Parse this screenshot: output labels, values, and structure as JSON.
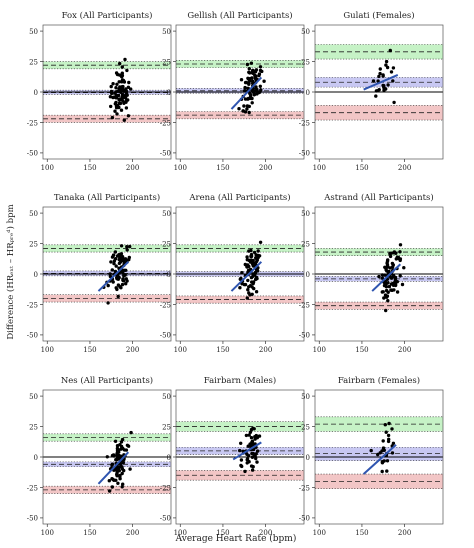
{
  "figure": {
    "xlabel": "Average Heart Rate (bpm)",
    "ylabel": "Difference (HRₑₓₜ – HRₚᵣₑᵈ) bpm"
  },
  "colors": {
    "upper_loa_band": "#c6f2c6",
    "bias_band": "#c8c8f2",
    "lower_loa_band": "#f2c6c6",
    "regression_line": "#2f55b0",
    "points": "#000000",
    "zero_line": "#000000"
  },
  "chart_data": [
    {
      "type": "scatter",
      "title": "Fox (All Participants)",
      "xlim": [
        95,
        245
      ],
      "ylim": [
        -55,
        55
      ],
      "xticks": [
        100,
        150,
        200
      ],
      "yticks": [
        -50,
        -25,
        0,
        25,
        50
      ],
      "x_range": [
        165,
        200
      ],
      "y_range": [
        -28,
        27
      ],
      "n": 85,
      "bias": -0.5,
      "bias_ci": [
        -2,
        1.5
      ],
      "upper_loa": 22,
      "upper_loa_ci": [
        19,
        25
      ],
      "lower_loa": -22,
      "lower_loa_ci": [
        -25,
        -19
      ],
      "regression": null
    },
    {
      "type": "scatter",
      "title": "Gellish (All Participants)",
      "xlim": [
        95,
        245
      ],
      "ylim": [
        -55,
        55
      ],
      "xticks": [
        100,
        150,
        200
      ],
      "yticks": [
        -50,
        -25,
        0,
        25,
        50
      ],
      "x_range": [
        160,
        200
      ],
      "y_range": [
        -25,
        26
      ],
      "n": 85,
      "bias": 1,
      "bias_ci": [
        -1,
        3
      ],
      "upper_loa": 23,
      "upper_loa_ci": [
        20,
        26
      ],
      "lower_loa": -19,
      "lower_loa_ci": [
        -22,
        -16
      ],
      "regression": {
        "x": [
          160,
          195
        ],
        "y": [
          -14,
          12
        ]
      }
    },
    {
      "type": "scatter",
      "title": "Gulati (Females)",
      "xlim": [
        95,
        245
      ],
      "ylim": [
        -55,
        55
      ],
      "xticks": [
        100,
        150,
        200
      ],
      "yticks": [
        -50,
        -25,
        0,
        25,
        50
      ],
      "x_range": [
        150,
        195
      ],
      "y_range": [
        -15,
        36
      ],
      "n": 25,
      "bias": 8,
      "bias_ci": [
        4,
        12
      ],
      "upper_loa": 33,
      "upper_loa_ci": [
        27,
        39
      ],
      "lower_loa": -17,
      "lower_loa_ci": [
        -23,
        -11
      ],
      "regression": {
        "x": [
          152,
          192
        ],
        "y": [
          2,
          14
        ]
      }
    },
    {
      "type": "scatter",
      "title": "Tanaka (All Participants)",
      "xlim": [
        95,
        245
      ],
      "ylim": [
        -55,
        55
      ],
      "xticks": [
        100,
        150,
        200
      ],
      "yticks": [
        -50,
        -25,
        0,
        25,
        50
      ],
      "x_range": [
        160,
        200
      ],
      "y_range": [
        -25,
        26
      ],
      "n": 85,
      "bias": 0.5,
      "bias_ci": [
        -1.5,
        2.5
      ],
      "upper_loa": 21,
      "upper_loa_ci": [
        18,
        24
      ],
      "lower_loa": -20,
      "lower_loa_ci": [
        -23,
        -17
      ],
      "regression": {
        "x": [
          160,
          195
        ],
        "y": [
          -14,
          10
        ]
      }
    },
    {
      "type": "scatter",
      "title": "Arena (All Participants)",
      "xlim": [
        95,
        245
      ],
      "ylim": [
        -55,
        55
      ],
      "xticks": [
        100,
        150,
        200
      ],
      "yticks": [
        -50,
        -25,
        0,
        25,
        50
      ],
      "x_range": [
        160,
        200
      ],
      "y_range": [
        -25,
        26
      ],
      "n": 85,
      "bias": 0,
      "bias_ci": [
        -2,
        2
      ],
      "upper_loa": 21,
      "upper_loa_ci": [
        18,
        24
      ],
      "lower_loa": -21,
      "lower_loa_ci": [
        -24,
        -18
      ],
      "regression": {
        "x": [
          160,
          195
        ],
        "y": [
          -14,
          10
        ]
      }
    },
    {
      "type": "scatter",
      "title": "Astrand (All Participants)",
      "xlim": [
        95,
        245
      ],
      "ylim": [
        -55,
        55
      ],
      "xticks": [
        100,
        150,
        200
      ],
      "yticks": [
        -50,
        -25,
        0,
        25,
        50
      ],
      "x_range": [
        160,
        200
      ],
      "y_range": [
        -30,
        25
      ],
      "n": 85,
      "bias": -4,
      "bias_ci": [
        -6,
        -2
      ],
      "upper_loa": 18,
      "upper_loa_ci": [
        15,
        21
      ],
      "lower_loa": -26,
      "lower_loa_ci": [
        -29,
        -23
      ],
      "regression": {
        "x": [
          162,
          195
        ],
        "y": [
          -14,
          8
        ]
      }
    },
    {
      "type": "scatter",
      "title": "Nes (All Participants)",
      "xlim": [
        95,
        245
      ],
      "ylim": [
        -55,
        55
      ],
      "xticks": [
        100,
        150,
        200
      ],
      "yticks": [
        -50,
        -25,
        0,
        25,
        50
      ],
      "x_range": [
        160,
        200
      ],
      "y_range": [
        -30,
        20
      ],
      "n": 85,
      "bias": -6,
      "bias_ci": [
        -8,
        -4
      ],
      "upper_loa": 16,
      "upper_loa_ci": [
        13,
        19
      ],
      "lower_loa": -27,
      "lower_loa_ci": [
        -30,
        -24
      ],
      "regression": {
        "x": [
          160,
          195
        ],
        "y": [
          -22,
          4
        ]
      }
    },
    {
      "type": "scatter",
      "title": "Fairbarn (Males)",
      "xlim": [
        95,
        245
      ],
      "ylim": [
        -55,
        55
      ],
      "xticks": [
        100,
        150,
        200
      ],
      "yticks": [
        -50,
        -25,
        0,
        25,
        50
      ],
      "x_range": [
        160,
        200
      ],
      "y_range": [
        -15,
        28
      ],
      "n": 60,
      "bias": 5,
      "bias_ci": [
        2,
        8
      ],
      "upper_loa": 25,
      "upper_loa_ci": [
        21,
        29
      ],
      "lower_loa": -15,
      "lower_loa_ci": [
        -19,
        -11
      ],
      "regression": {
        "x": [
          162,
          195
        ],
        "y": [
          -2,
          12
        ]
      }
    },
    {
      "type": "scatter",
      "title": "Fairbarn (Females)",
      "xlim": [
        95,
        245
      ],
      "ylim": [
        -55,
        55
      ],
      "xticks": [
        100,
        150,
        200
      ],
      "yticks": [
        -50,
        -25,
        0,
        25,
        50
      ],
      "x_range": [
        152,
        195
      ],
      "y_range": [
        -20,
        28
      ],
      "n": 25,
      "bias": 3,
      "bias_ci": [
        -3,
        8
      ],
      "upper_loa": 27,
      "upper_loa_ci": [
        21,
        33
      ],
      "lower_loa": -20,
      "lower_loa_ci": [
        -26,
        -14
      ],
      "regression": {
        "x": [
          152,
          190
        ],
        "y": [
          -14,
          10
        ]
      }
    }
  ]
}
